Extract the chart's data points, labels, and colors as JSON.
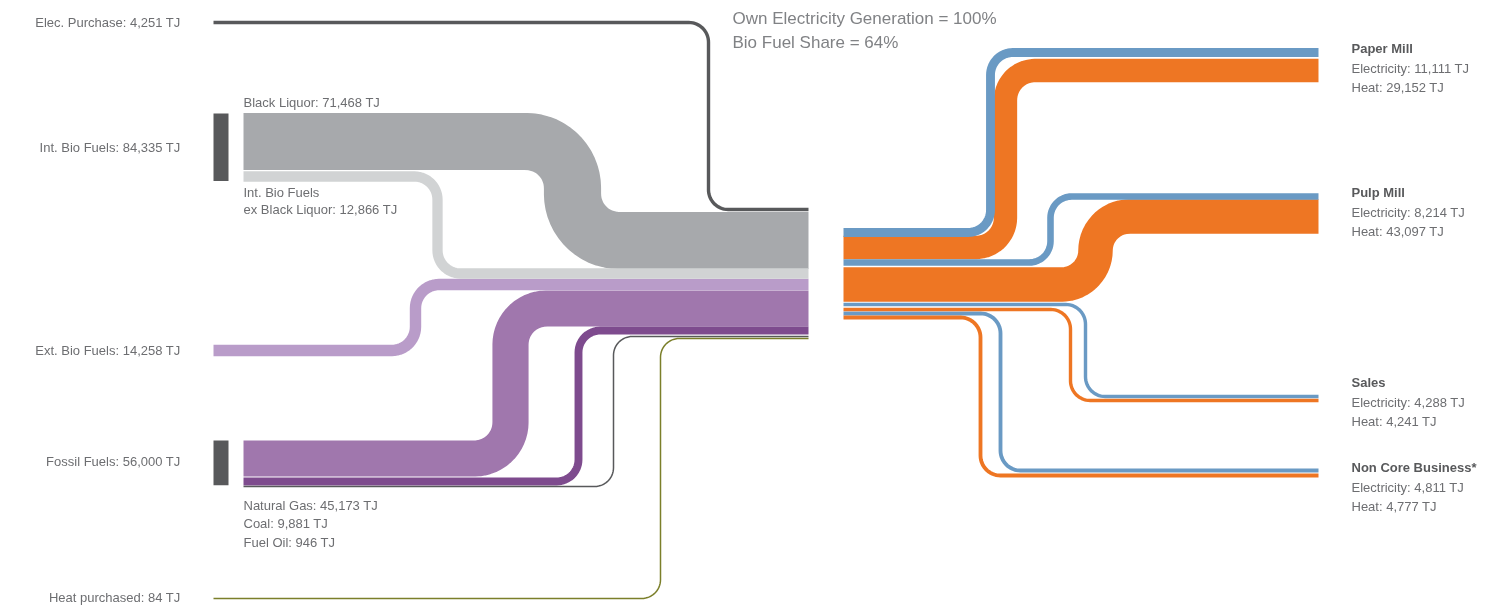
{
  "chart_data": {
    "type": "other",
    "title": "Own Electricity Generation = 100%",
    "subtitle": "Bio Fuel Share = 64%",
    "categories": [
      "Elec. Purchase",
      "Int. Bio Fuels",
      "Black Liquor",
      "Int. Bio Fuels\nex Black Liquor",
      "Ext. Bio Fuels",
      "Fossil Fuels",
      "Natural Gas",
      "Coal",
      "Fuel Oil",
      "Heat purchased",
      "Electricity",
      "Heat",
      "Electricity",
      "Heat",
      "Electricity",
      "Heat",
      "Electricity",
      "Heat"
    ],
    "value_labels": [
      ": 4,251 TJ",
      ": 84,335 TJ",
      ": 71,468 TJ",
      ": 12,866 TJ",
      ": 14,258 TJ",
      ": 56,000 TJ",
      ": 45,173 TJ",
      ": 9,881 TJ",
      ": 946 TJ",
      ": 84 TJ",
      ": 11,111 TJ",
      ": 29,152 TJ",
      ": 8,214 TJ",
      ": 43,097 TJ",
      ": 4,288 TJ",
      ": 4,241 TJ",
      ": 4,811 TJ",
      ": 4,777 TJ"
    ],
    "values": [
      4251,
      84335,
      71468,
      12866,
      14258,
      56000,
      45173,
      9881,
      946,
      84,
      11111,
      29152,
      8214,
      43097,
      4288,
      4241,
      4811,
      4777
    ],
    "colors": [
      "#58595b",
      "#58595b",
      "#a7a9ac",
      "#d1d3d4",
      "#b99cc9",
      "#58595b",
      "#a077ad",
      "#7e4b8e",
      "#58595b",
      "#7b7f2a",
      "#6a9ac4",
      "#ee7623",
      "#6a9ac4",
      "#ee7623",
      "#6a9ac4",
      "#ee7623",
      "#6a9ac4",
      "#ee7623"
    ],
    "annotations": [
      "Paper Mill",
      "Pulp Mill",
      "Sales",
      "Non Core Business*"
    ]
  }
}
